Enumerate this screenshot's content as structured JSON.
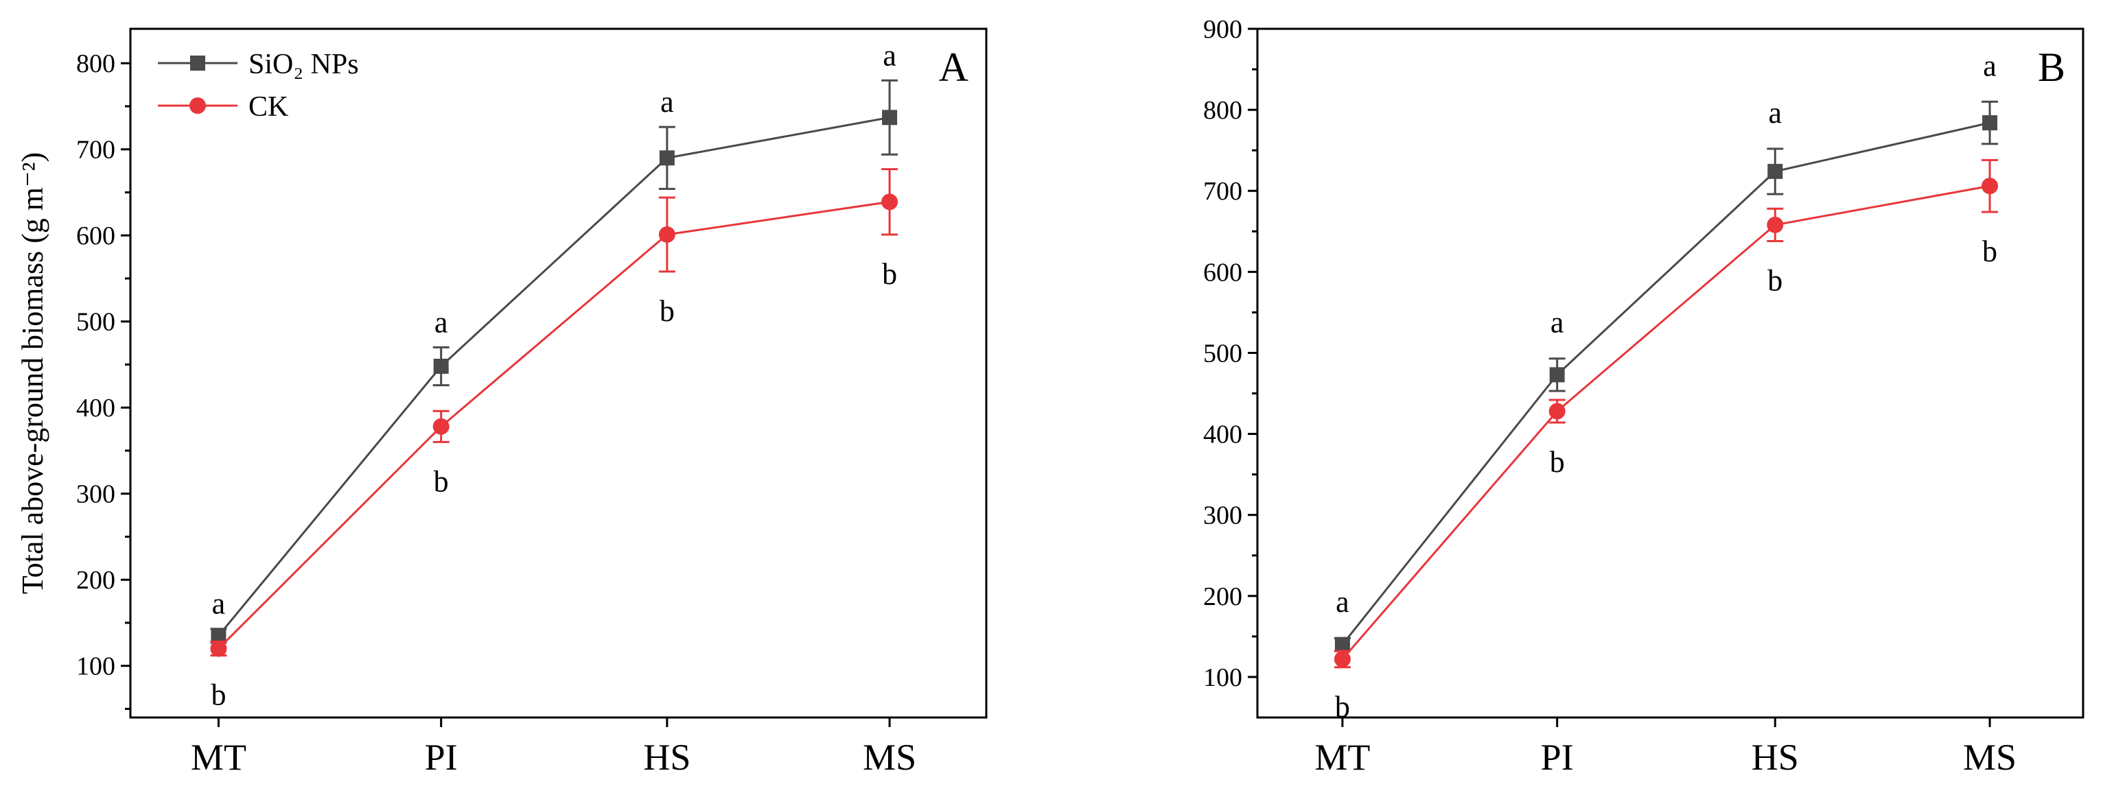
{
  "chart_data": [
    {
      "type": "line",
      "panel_label": "A",
      "ylabel": "Total above-ground biomass (g m⁻²)",
      "xlabel": "",
      "categories": [
        "MT",
        "PI",
        "HS",
        "MS"
      ],
      "ylim": [
        40,
        840
      ],
      "yticks": [
        100,
        200,
        300,
        400,
        500,
        600,
        700,
        800
      ],
      "legend": "top-left",
      "series": [
        {
          "name": "SiO₂ NPs",
          "color": "#4a4a4a",
          "marker": "square",
          "values": [
            135,
            448,
            690,
            737
          ],
          "errors": [
            8,
            22,
            36,
            43
          ],
          "sig": [
            "a",
            "a",
            "a",
            "a"
          ]
        },
        {
          "name": "CK",
          "color": "#e8363b",
          "marker": "circle",
          "values": [
            120,
            378,
            601,
            639
          ],
          "errors": [
            8,
            18,
            43,
            38
          ],
          "sig": [
            "b",
            "b",
            "b",
            "b"
          ]
        }
      ]
    },
    {
      "type": "line",
      "panel_label": "B",
      "ylabel": "",
      "xlabel": "",
      "categories": [
        "MT",
        "PI",
        "HS",
        "MS"
      ],
      "ylim": [
        50,
        900
      ],
      "yticks": [
        100,
        200,
        300,
        400,
        500,
        600,
        700,
        800,
        900
      ],
      "legend": "none",
      "series": [
        {
          "name": "SiO₂ NPs",
          "color": "#4a4a4a",
          "marker": "square",
          "values": [
            140,
            473,
            724,
            784
          ],
          "errors": [
            8,
            20,
            28,
            26
          ],
          "sig": [
            "a",
            "a",
            "a",
            "a"
          ]
        },
        {
          "name": "CK",
          "color": "#e8363b",
          "marker": "circle",
          "values": [
            122,
            428,
            658,
            706
          ],
          "errors": [
            10,
            14,
            20,
            32
          ],
          "sig": [
            "b",
            "b",
            "b",
            "b"
          ]
        }
      ]
    }
  ]
}
